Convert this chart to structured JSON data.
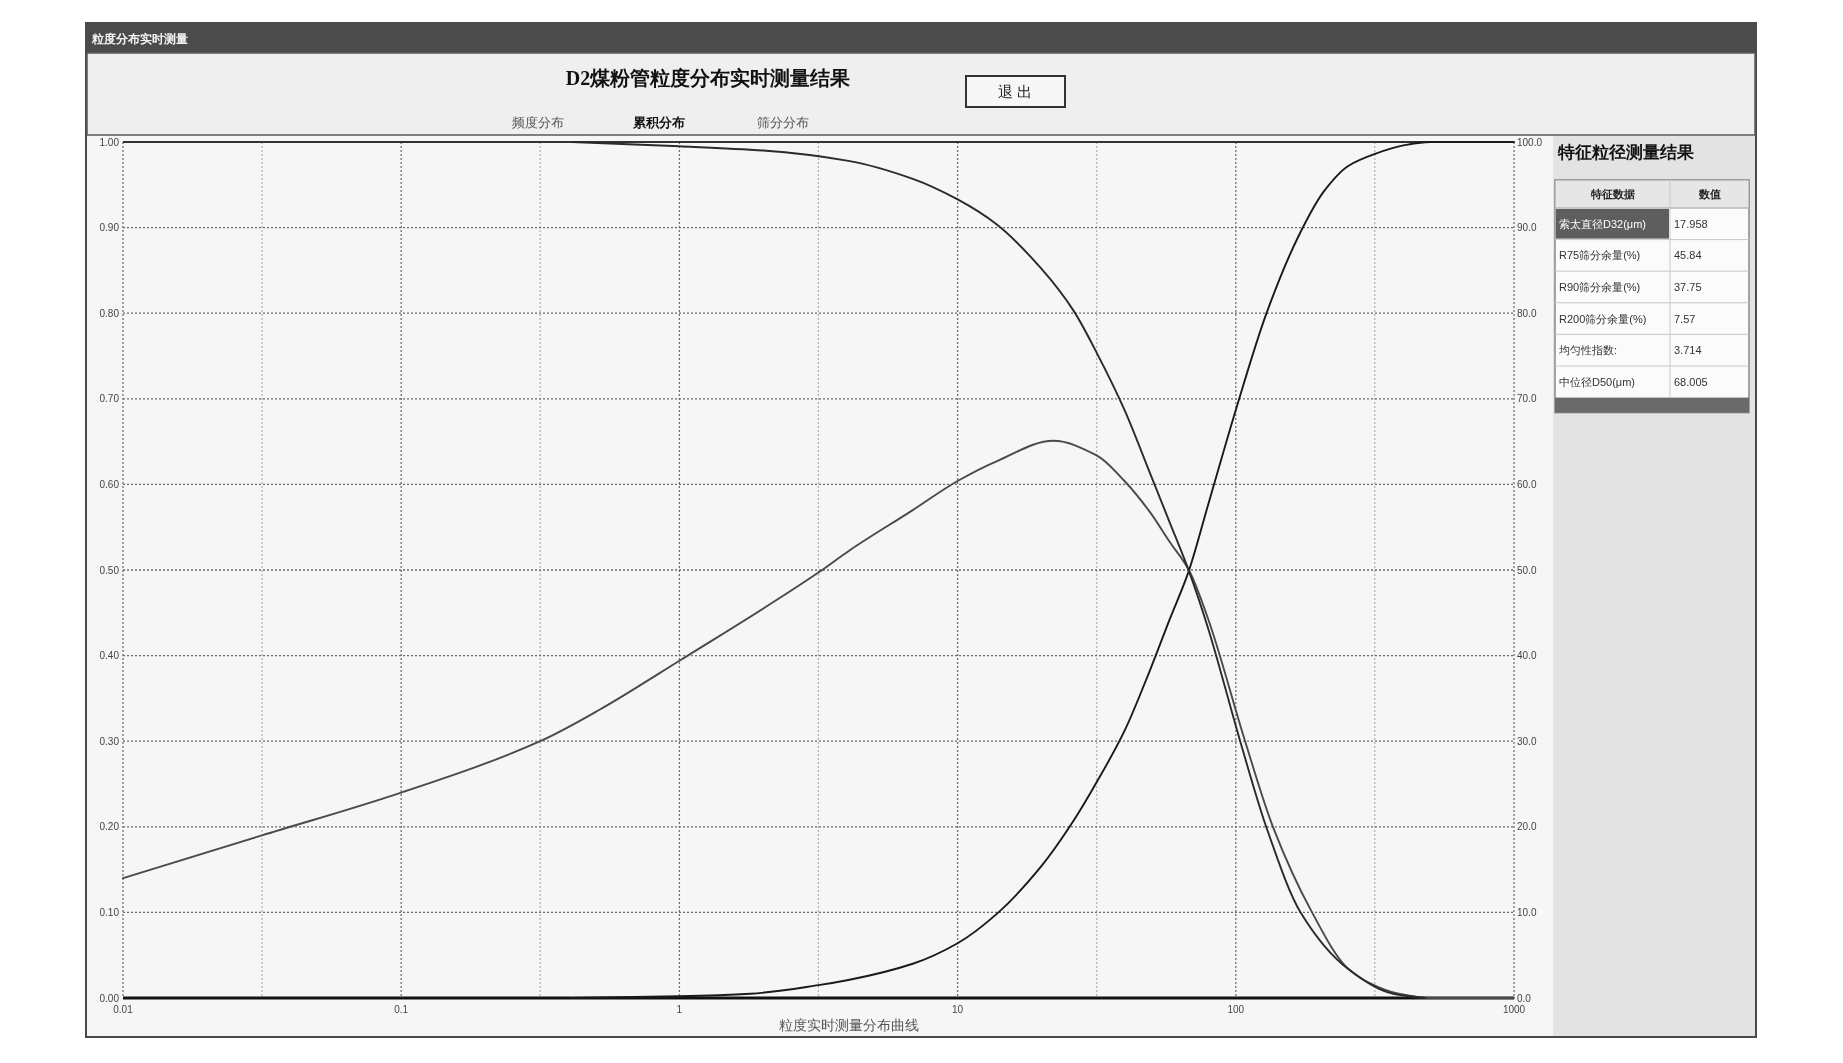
{
  "chart_data": [
    {
      "type": "line",
      "title": "D2煤粉管粒度分布实时测量结果",
      "xlabel": "粒度实时测量分布曲线",
      "annotations": [
        "粒度分布实时测量",
        "退 出",
        "频度分布",
        "累积分布",
        "筛分分布"
      ],
      "log": "x",
      "xlim": [
        0.01,
        1000
      ],
      "xticks": [
        0.01,
        {
          "value": 0.0316,
          "label": null
        },
        0.1,
        {
          "value": 0.316,
          "label": null
        },
        1,
        {
          "value": 3.16,
          "label": null
        },
        10,
        {
          "value": 31.6,
          "label": null
        },
        100,
        {
          "value": 316,
          "label": null
        },
        1000
      ],
      "ylim": [
        0,
        1
      ],
      "yticks": [
        {
          "value": 0,
          "label": "0.00"
        },
        {
          "value": 0.1,
          "label": "0.10"
        },
        {
          "value": 0.2,
          "label": "0.20"
        },
        {
          "value": 0.3,
          "label": "0.30"
        },
        {
          "value": 0.4,
          "label": "0.40"
        },
        {
          "value": 0.5,
          "label": "0.50"
        },
        {
          "value": 0.6,
          "label": "0.60"
        },
        {
          "value": 0.7,
          "label": "0.70"
        },
        {
          "value": 0.8,
          "label": "0.80"
        },
        {
          "value": 0.9,
          "label": "0.90"
        },
        {
          "value": 1,
          "label": "1.00"
        }
      ],
      "y2lim": [
        0,
        100
      ],
      "y2ticks": [
        {
          "value": 0,
          "label": "0.0"
        },
        {
          "value": 10,
          "label": "10.0"
        },
        {
          "value": 20,
          "label": "20.0"
        },
        {
          "value": 30,
          "label": "30.0"
        },
        {
          "value": 40,
          "label": "40.0"
        },
        {
          "value": 50,
          "label": "50.0"
        },
        {
          "value": 60,
          "label": "60.0"
        },
        {
          "value": 70,
          "label": "70.0"
        },
        {
          "value": 80,
          "label": "80.0"
        },
        {
          "value": 90,
          "label": "90.0"
        },
        {
          "value": 100,
          "label": "100.0"
        }
      ],
      "grid": true,
      "series": [
        {
          "color": "#4a4a4a",
          "x": [
            0.01,
            0.0316,
            0.1,
            0.316,
            0.518,
            1,
            3.16,
            4.05,
            6.9,
            10,
            13.8,
            22.1,
            31.6,
            39.8,
            49.3,
            57.8,
            67.8,
            79.5,
            108,
            136,
            188,
            250,
            300,
            385,
            500,
            1000
          ],
          "values": [
            0.14,
            0.19,
            0.24,
            0.3,
            0.337,
            0.394,
            0.497,
            0.522,
            0.57,
            0.604,
            0.627,
            0.651,
            0.634,
            0.604,
            0.567,
            0.533,
            0.5,
            0.443,
            0.3,
            0.2,
            0.1,
            0.036,
            0.018,
            0.005,
            0,
            0
          ]
        },
        {
          "color": "#1a1a1a",
          "axis": "y2",
          "x": [
            0.41,
            1,
            1.8,
            3.16,
            4.05,
            6.9,
            10,
            13.8,
            20,
            26.1,
            31.6,
            39.8,
            49.3,
            57.8,
            67.8,
            79.5,
            100,
            128.6,
            167.5,
            207,
            253.6,
            316,
            400,
            500,
            1000
          ],
          "values": [
            0,
            0.2,
            0.5,
            1.5,
            2.1,
            4,
            6.4,
            9.8,
            15.4,
            20.7,
            25.2,
            31.2,
            38.4,
            44.2,
            49.9,
            57.6,
            68.7,
            79.9,
            88.9,
            94.2,
            97.2,
            98.6,
            99.6,
            100,
            100
          ]
        },
        {
          "color": "#2a2a2a",
          "axis": "y2",
          "x": [
            0.41,
            1,
            2,
            4.05,
            6.9,
            10,
            13.8,
            20,
            26.1,
            31.6,
            39.8,
            49.3,
            57.8,
            67.8,
            79.5,
            103.7,
            128.6,
            171,
            253.6,
            368,
            478
          ],
          "values": [
            100,
            99.5,
            99,
            97.8,
            95.7,
            93.3,
            90.4,
            85.2,
            80.3,
            75.4,
            68.7,
            61.2,
            55.6,
            49.9,
            43.2,
            30,
            20,
            10,
            3.4,
            0.5,
            0
          ]
        }
      ]
    },
    {
      "type": "other",
      "title": "特征粒径测量结果",
      "annotations": [
        "特征数据",
        "数值",
        "索太直径D32(μm)",
        "17.958",
        "R75筛分余量(%)",
        "45.84",
        "R90筛分余量(%)",
        "37.75",
        "R200筛分余量(%)",
        "7.57",
        "均匀性指数:",
        "3.714",
        "中位径D50(μm)",
        "68.005"
      ]
    }
  ]
}
